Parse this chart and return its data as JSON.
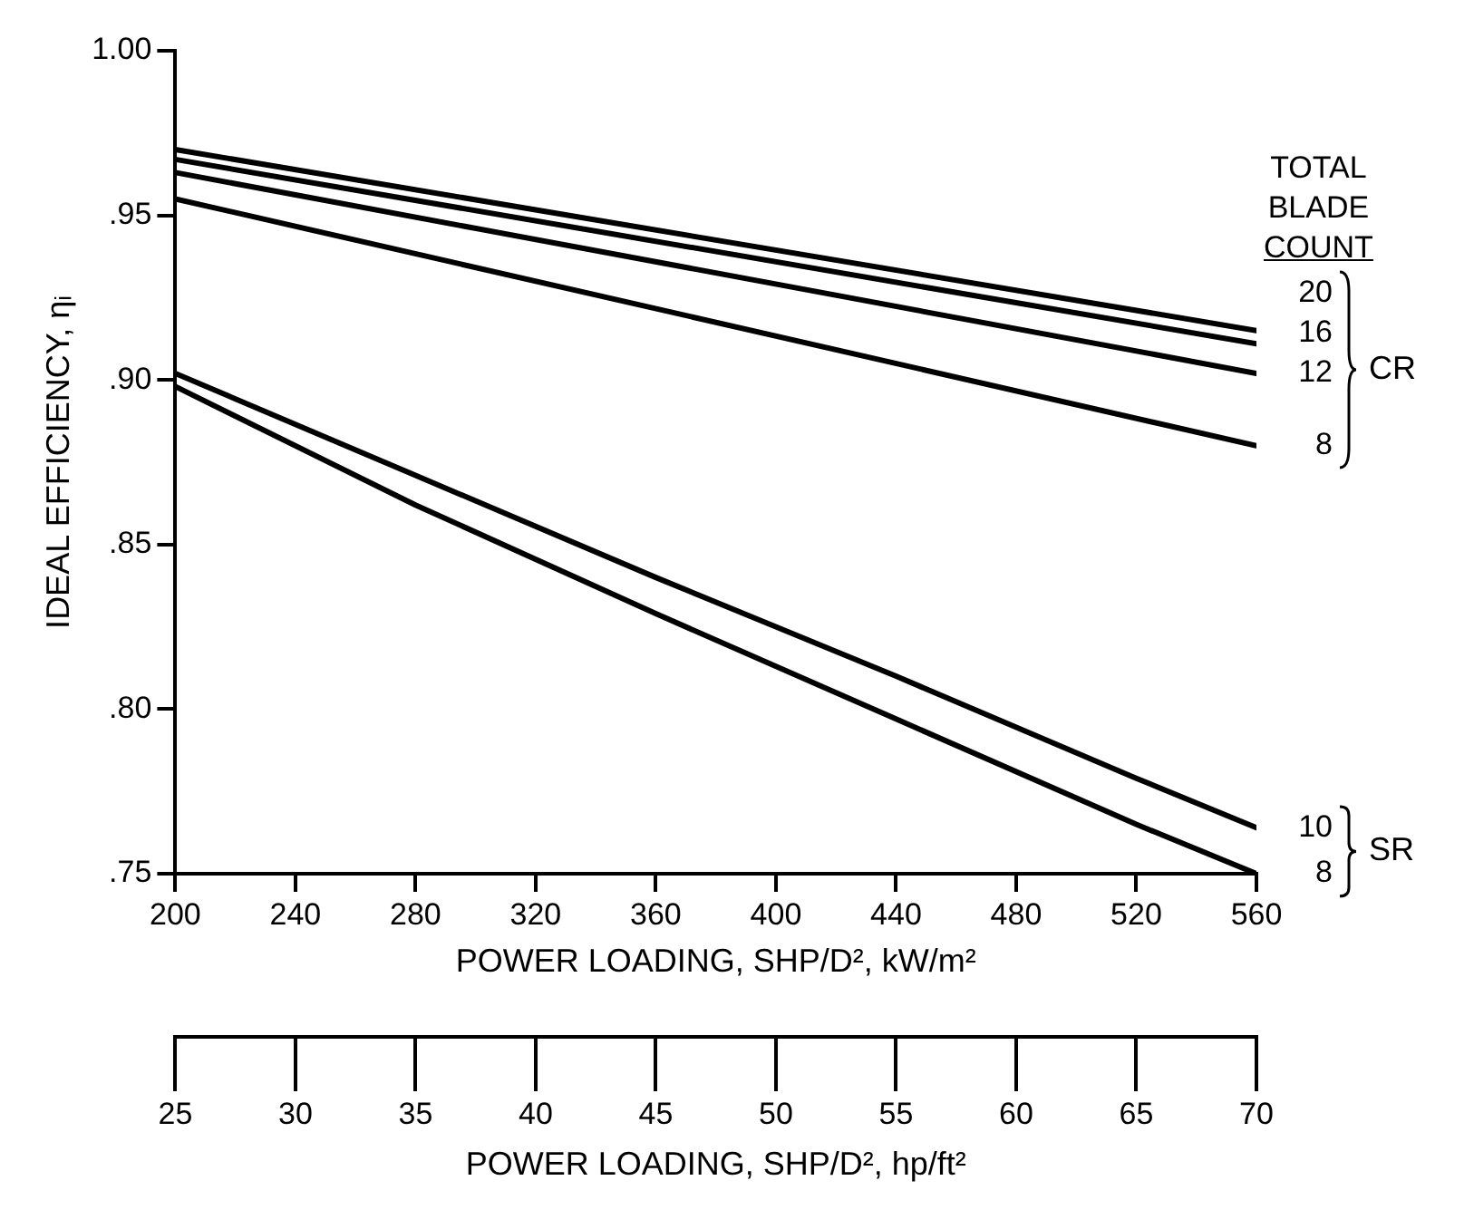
{
  "chart_data": {
    "type": "line",
    "xlabel": "POWER LOADING, SHP/D², kW/m²",
    "x2label": "POWER LOADING, SHP/D², hp/ft²",
    "ylabel": "IDEAL EFFICIENCY, ηᵢ",
    "legend_title": "TOTAL BLADE COUNT",
    "series": [
      {
        "name": "20",
        "color": "#000000",
        "x": [
          200,
          560
        ],
        "values": [
          0.97,
          0.915
        ]
      },
      {
        "name": "16",
        "color": "#000000",
        "x": [
          200,
          560
        ],
        "values": [
          0.967,
          0.911
        ]
      },
      {
        "name": "12",
        "color": "#000000",
        "x": [
          200,
          560
        ],
        "values": [
          0.963,
          0.902
        ]
      },
      {
        "name": "8",
        "color": "#000000",
        "x": [
          200,
          560
        ],
        "values": [
          0.955,
          0.88
        ]
      },
      {
        "name": "10",
        "color": "#000000",
        "x": [
          200,
          280,
          360,
          440,
          520,
          560
        ],
        "values": [
          0.902,
          0.871,
          0.84,
          0.81,
          0.779,
          0.764
        ]
      },
      {
        "name": "8",
        "color": "#000000",
        "x": [
          200,
          280,
          360,
          440,
          520,
          560
        ],
        "values": [
          0.898,
          0.862,
          0.829,
          0.797,
          0.765,
          0.75
        ]
      }
    ],
    "xlim": [
      200,
      560
    ],
    "xticks": [
      200,
      240,
      280,
      320,
      360,
      400,
      440,
      480,
      520,
      560
    ],
    "x2lim": [
      25,
      70
    ],
    "x2ticks": [
      25,
      30,
      35,
      40,
      45,
      50,
      55,
      60,
      65,
      70
    ],
    "ylim": [
      0.75,
      1.0
    ],
    "yticks": [
      {
        "value": 0.75,
        "label": ".75"
      },
      {
        "value": 0.8,
        "label": ".80"
      },
      {
        "value": 0.85,
        "label": ".85"
      },
      {
        "value": 0.9,
        "label": ".90"
      },
      {
        "value": 0.95,
        "label": ".95"
      },
      {
        "value": 1.0,
        "label": "1.00"
      }
    ],
    "marker": "none",
    "line_style": "solid",
    "annotations": [
      "CR",
      "SR"
    ]
  }
}
